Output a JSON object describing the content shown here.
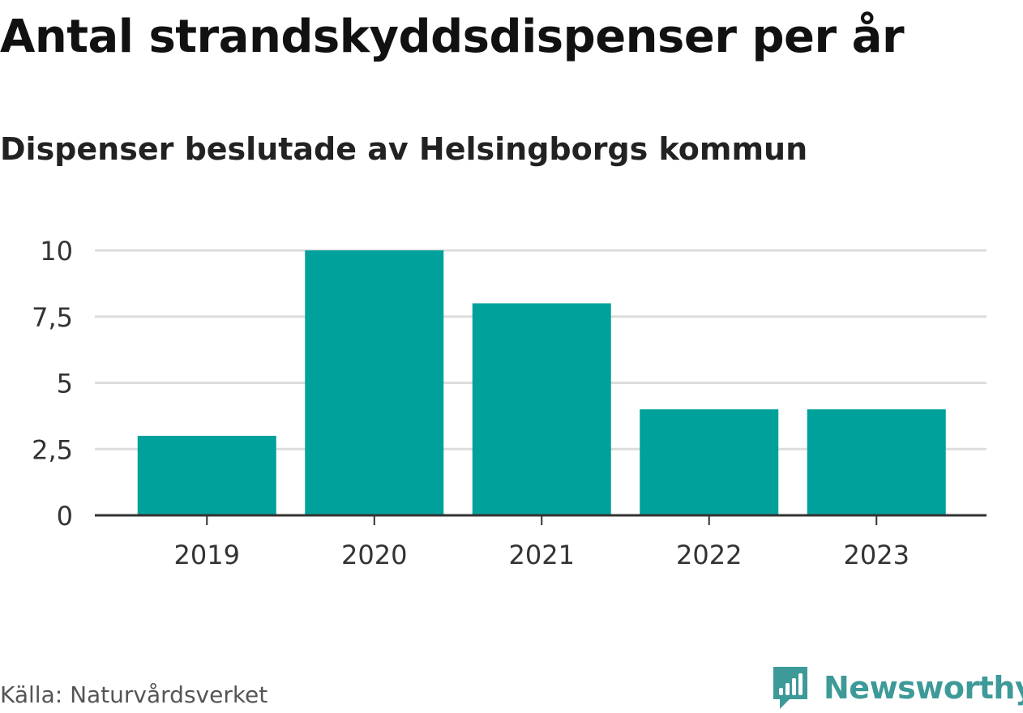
{
  "chart_data": {
    "type": "bar",
    "title": "Antal strandskyddsdispenser per år",
    "subtitle": "Dispenser beslutade av Helsingborgs kommun",
    "categories": [
      "2019",
      "2020",
      "2021",
      "2022",
      "2023"
    ],
    "values": [
      3,
      10,
      8,
      4,
      4
    ],
    "xlabel": "",
    "ylabel": "",
    "ylim": [
      0,
      10
    ],
    "yticks": [
      0,
      2.5,
      5,
      7.5,
      10
    ],
    "ytick_labels": [
      "0",
      "2,5",
      "5",
      "7,5",
      "10"
    ],
    "grid": true,
    "bar_color": "#00a19a",
    "source": "Källa: Naturvårdsverket"
  },
  "brand": {
    "name": "Newsworthy",
    "logo_icon": "newsworthy-chart-logo-icon",
    "color": "#3d9a98"
  }
}
